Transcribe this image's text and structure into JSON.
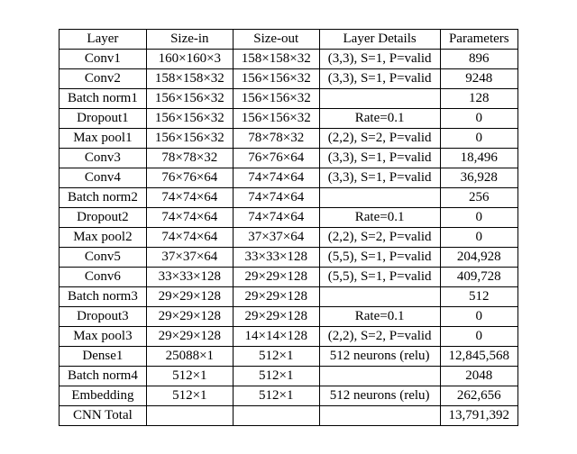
{
  "table": {
    "type": "table",
    "columns": [
      "Layer",
      "Size-in",
      "Size-out",
      "Layer Details",
      "Parameters"
    ],
    "col_align": [
      "center",
      "center",
      "center",
      "center",
      "center"
    ],
    "font_family": "Times New Roman",
    "font_size_pt": 11,
    "border_color": "#000000",
    "background_color": "#ffffff",
    "text_color": "#000000",
    "rows": [
      [
        "Conv1",
        "160×160×3",
        "158×158×32",
        "(3,3), S=1, P=valid",
        "896"
      ],
      [
        "Conv2",
        "158×158×32",
        "156×156×32",
        "(3,3), S=1, P=valid",
        "9248"
      ],
      [
        "Batch norm1",
        "156×156×32",
        "156×156×32",
        "",
        "128"
      ],
      [
        "Dropout1",
        "156×156×32",
        "156×156×32",
        "Rate=0.1",
        "0"
      ],
      [
        "Max pool1",
        "156×156×32",
        "78×78×32",
        "(2,2), S=2, P=valid",
        "0"
      ],
      [
        "Conv3",
        "78×78×32",
        "76×76×64",
        "(3,3), S=1, P=valid",
        "18,496"
      ],
      [
        "Conv4",
        "76×76×64",
        "74×74×64",
        "(3,3), S=1, P=valid",
        "36,928"
      ],
      [
        "Batch norm2",
        "74×74×64",
        "74×74×64",
        "",
        "256"
      ],
      [
        "Dropout2",
        "74×74×64",
        "74×74×64",
        "Rate=0.1",
        "0"
      ],
      [
        "Max pool2",
        "74×74×64",
        "37×37×64",
        "(2,2), S=2, P=valid",
        "0"
      ],
      [
        "Conv5",
        "37×37×64",
        "33×33×128",
        "(5,5), S=1, P=valid",
        "204,928"
      ],
      [
        "Conv6",
        "33×33×128",
        "29×29×128",
        "(5,5), S=1, P=valid",
        "409,728"
      ],
      [
        "Batch norm3",
        "29×29×128",
        "29×29×128",
        "",
        "512"
      ],
      [
        "Dropout3",
        "29×29×128",
        "29×29×128",
        "Rate=0.1",
        "0"
      ],
      [
        "Max pool3",
        "29×29×128",
        "14×14×128",
        "(2,2), S=2, P=valid",
        "0"
      ],
      [
        "Dense1",
        "25088×1",
        "512×1",
        "512 neurons (relu)",
        "12,845,568"
      ],
      [
        "Batch norm4",
        "512×1",
        "512×1",
        "",
        "2048"
      ],
      [
        "Embedding",
        "512×1",
        "512×1",
        "512 neurons (relu)",
        "262,656"
      ],
      [
        "CNN Total",
        "",
        "",
        "",
        "13,791,392"
      ]
    ]
  }
}
